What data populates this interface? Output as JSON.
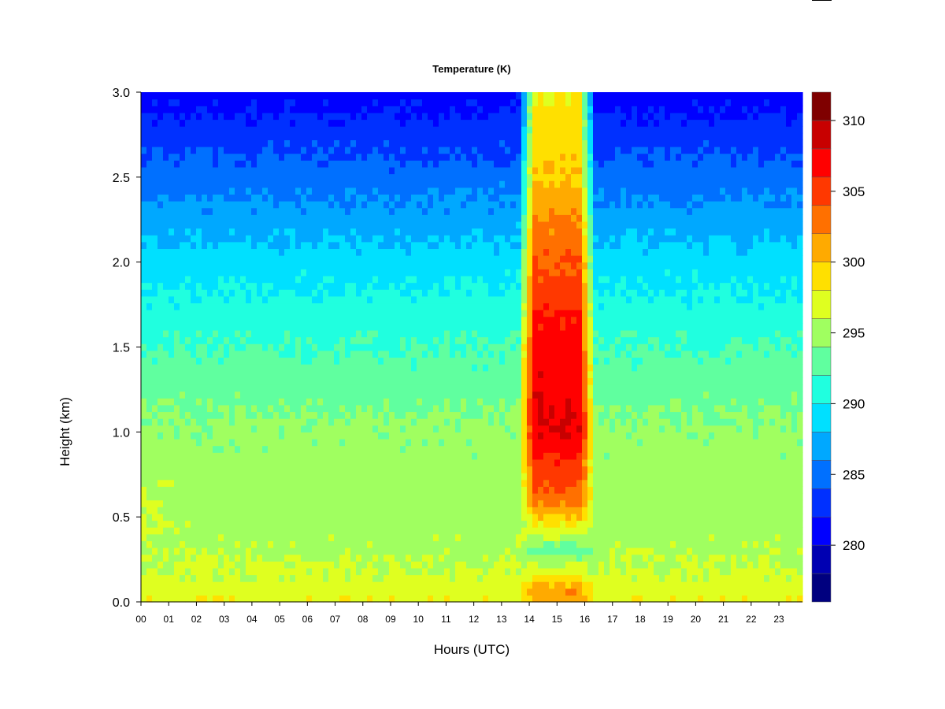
{
  "chart_data": {
    "type": "heatmap",
    "title": "Temperature (K)",
    "xlabel": "Hours (UTC)",
    "ylabel": "Height (km)",
    "x_range": [
      0,
      23.85
    ],
    "ylim": [
      0.0,
      3.0
    ],
    "x_ticks": [
      "00",
      "01",
      "02",
      "03",
      "04",
      "05",
      "06",
      "07",
      "08",
      "09",
      "10",
      "11",
      "12",
      "13",
      "14",
      "15",
      "16",
      "17",
      "18",
      "19",
      "20",
      "21",
      "22",
      "23"
    ],
    "y_ticks": [
      "0.0",
      "0.5",
      "1.0",
      "1.5",
      "2.0",
      "2.5",
      "3.0"
    ],
    "colorbar": {
      "range": [
        276,
        312
      ],
      "step": 2,
      "tick_values": [
        280,
        285,
        290,
        295,
        300,
        305,
        310
      ],
      "tick_labels": [
        "280",
        "285",
        "290",
        "295",
        "300",
        "305",
        "310"
      ],
      "colors": [
        "#00007f",
        "#0000b2",
        "#0000ff",
        "#0030ff",
        "#0070ff",
        "#00a8ff",
        "#00e0ff",
        "#20ffdf",
        "#60ff9f",
        "#a0ff60",
        "#dfff20",
        "#ffe000",
        "#ffaa00",
        "#ff7000",
        "#ff3800",
        "#ff0000",
        "#c80000",
        "#7f0000"
      ]
    },
    "profile_km": [
      0.0,
      0.05,
      0.3,
      0.6,
      1.0,
      1.5,
      2.0,
      2.5,
      3.0
    ],
    "background_K": [
      298,
      297,
      295.5,
      295,
      294.5,
      292,
      289,
      285,
      281
    ],
    "warm_plume": {
      "start_hour": 13.6,
      "end_hour": 16.4,
      "core_K": [
        300,
        302,
        293,
        303,
        308,
        307,
        304,
        300,
        298
      ]
    }
  }
}
